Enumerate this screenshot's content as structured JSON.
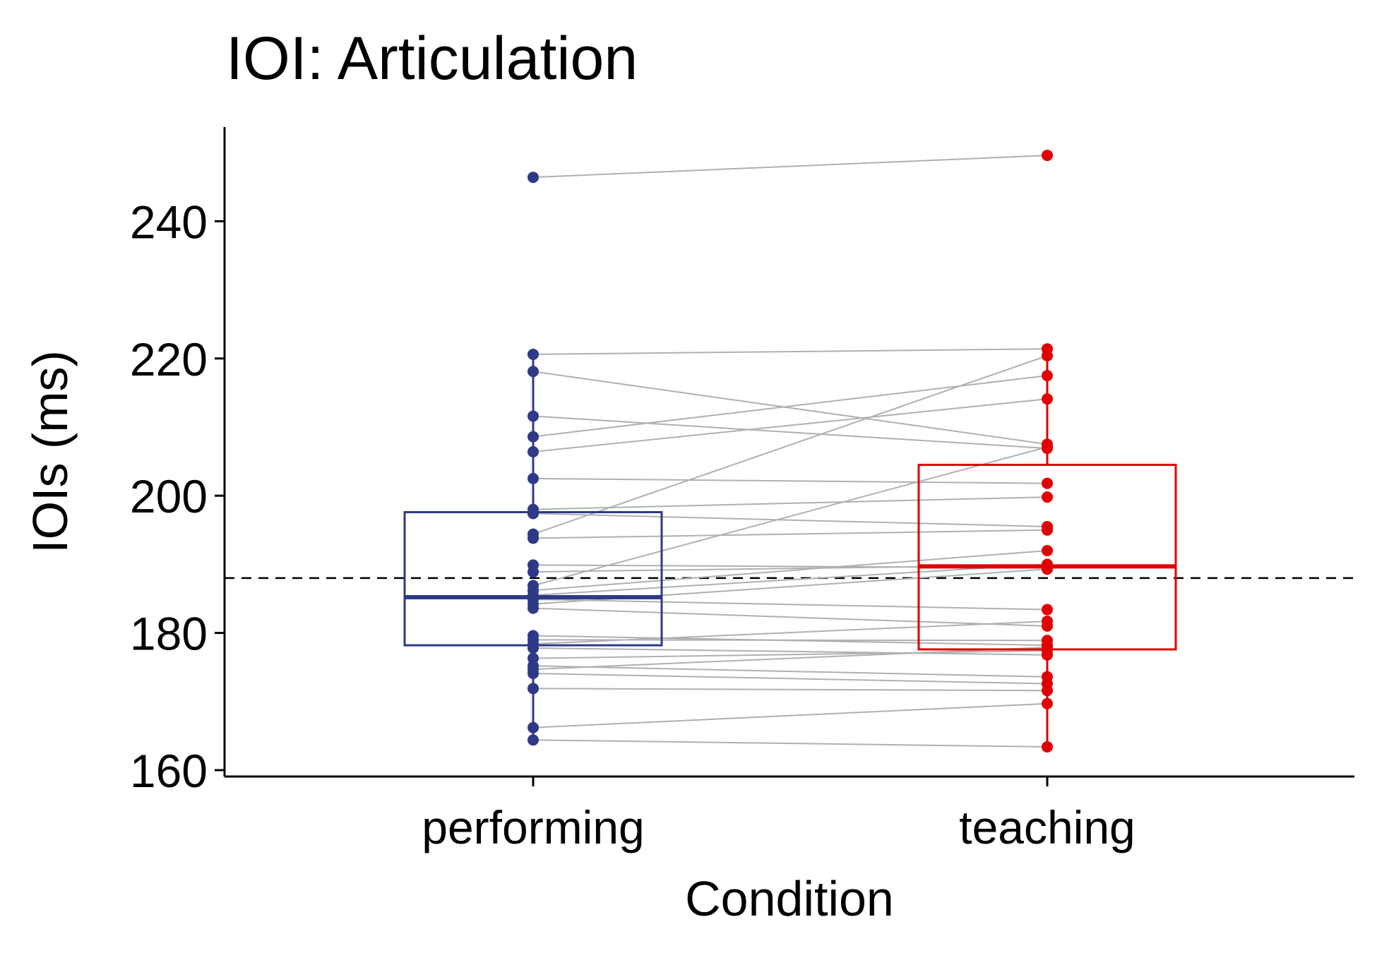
{
  "chart_data": {
    "type": "boxplot-paired",
    "title": "IOI: Articulation",
    "xlabel": "Condition",
    "ylabel": "IOIs (ms)",
    "ylim": [
      159,
      253
    ],
    "yticks": [
      160,
      180,
      200,
      220,
      240
    ],
    "reference_line": 188,
    "categories": [
      "performing",
      "teaching"
    ],
    "colors": {
      "performing": "#2e3a87",
      "teaching": "#e00000",
      "pair_line": "#b0b0b0",
      "axis": "#000000"
    },
    "boxes": [
      {
        "category": "performing",
        "q1": 178.2,
        "median": 185.2,
        "q3": 197.6,
        "whisker_low": 164.4,
        "whisker_high": 220.6
      },
      {
        "category": "teaching",
        "q1": 177.6,
        "median": 189.7,
        "q3": 204.5,
        "whisker_low": 163.4,
        "whisker_high": 221.4
      }
    ],
    "pairs": [
      [
        246.4,
        249.6
      ],
      [
        220.6,
        221.4
      ],
      [
        218.1,
        207.5
      ],
      [
        211.6,
        206.9
      ],
      [
        208.6,
        217.5
      ],
      [
        206.4,
        214.1
      ],
      [
        202.5,
        201.8
      ],
      [
        198.0,
        199.8
      ],
      [
        197.4,
        195.5
      ],
      [
        194.4,
        220.4
      ],
      [
        193.8,
        195.0
      ],
      [
        189.9,
        189.5
      ],
      [
        188.9,
        189.9
      ],
      [
        186.9,
        207.1
      ],
      [
        186.2,
        192.0
      ],
      [
        185.5,
        190.0
      ],
      [
        184.9,
        183.4
      ],
      [
        184.2,
        189.3
      ],
      [
        183.6,
        181.0
      ],
      [
        179.6,
        178.2
      ],
      [
        179.0,
        178.9
      ],
      [
        178.4,
        181.7
      ],
      [
        177.8,
        176.8
      ],
      [
        176.3,
        177.4
      ],
      [
        175.2,
        173.6
      ],
      [
        174.7,
        177.9
      ],
      [
        174.1,
        172.6
      ],
      [
        171.9,
        171.6
      ],
      [
        166.2,
        169.7
      ],
      [
        164.4,
        163.4
      ]
    ]
  }
}
